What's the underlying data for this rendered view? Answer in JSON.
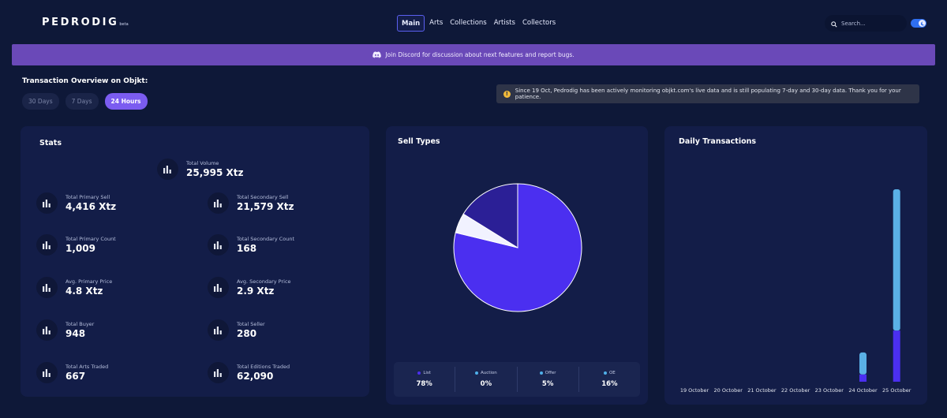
{
  "header": {
    "logo": "PEDRODIG",
    "logo_badge": "beta",
    "nav": [
      "Main",
      "Arts",
      "Collections",
      "Artists",
      "Collectors"
    ],
    "nav_active": "Main",
    "search_placeholder": "Search...",
    "theme_toggle_on": true
  },
  "banner": {
    "text": "Join Discord for discussion about next features and report bugs.",
    "icon": "discord-icon"
  },
  "overview": {
    "title": "Transaction Overview on Objkt:",
    "ranges": [
      "30 Days",
      "7 Days",
      "24 Hours"
    ],
    "active_range": "24 Hours"
  },
  "notice": {
    "icon": "warning-icon",
    "text": "Since 19 Oct, Pedrodig has been actively monitoring objkt.com's live data and is still populating 7-day and 30-day data. Thank you for your patience."
  },
  "stats": {
    "title": "Stats",
    "total_volume": {
      "label": "Total Volume",
      "value": "25,995 Xtz"
    },
    "items": [
      {
        "label": "Total Primary Sell",
        "value": "4,416 Xtz"
      },
      {
        "label": "Total Secondary Sell",
        "value": "21,579 Xtz"
      },
      {
        "label": "Total Primary Count",
        "value": "1,009"
      },
      {
        "label": "Total Secondary Count",
        "value": "168"
      },
      {
        "label": "Avg. Primary Price",
        "value": "4.8 Xtz"
      },
      {
        "label": "Avg. Secondary Price",
        "value": "2.9 Xtz"
      },
      {
        "label": "Total Buyer",
        "value": "948"
      },
      {
        "label": "Total Seller",
        "value": "280"
      },
      {
        "label": "Total Arts Traded",
        "value": "667"
      },
      {
        "label": "Total Editions Traded",
        "value": "62,090"
      }
    ]
  },
  "sell_types": {
    "title": "Sell Types",
    "legend": [
      {
        "name": "List",
        "value": "78%",
        "color": "#4b2ff0"
      },
      {
        "name": "Auction",
        "value": "0%",
        "color": "#4fb0ea"
      },
      {
        "name": "Offer",
        "value": "5%",
        "color": "#4fb0ea"
      },
      {
        "name": "OE",
        "value": "16%",
        "color": "#4fb0ea"
      }
    ]
  },
  "daily": {
    "title": "Daily Transactions"
  },
  "chart_data": [
    {
      "type": "pie",
      "title": "Sell Types",
      "labels": [
        "List",
        "Auction",
        "Offer",
        "OE"
      ],
      "values": [
        78,
        0,
        5,
        16
      ],
      "colors": [
        "#4b2ff0",
        "#4fb0ea",
        "#f1f2ff",
        "#2b1f96"
      ]
    },
    {
      "type": "bar",
      "title": "Daily Transactions",
      "categories": [
        "19 October",
        "20 October",
        "21 October",
        "22 October",
        "23 October",
        "24 October",
        "25 October"
      ],
      "series": [
        {
          "values": [
            0,
            0,
            0,
            0,
            0,
            3,
            21
          ],
          "color": "#4b2ff0"
        },
        {
          "values": [
            0,
            0,
            0,
            0,
            0,
            9,
            58
          ],
          "color": "#5ab0e6"
        }
      ]
    }
  ]
}
